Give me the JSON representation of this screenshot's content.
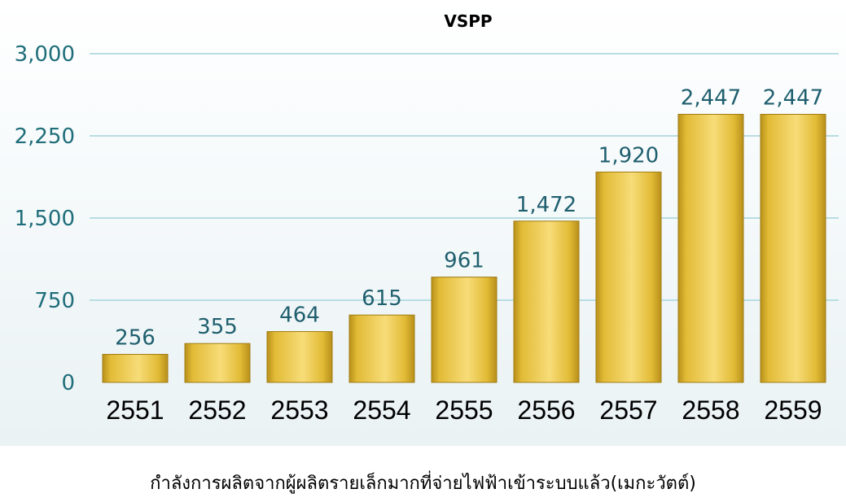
{
  "chart_data": {
    "type": "bar",
    "title": "VSPP",
    "xlabel": "กำลังการผลิตจากผู้ผลิตรายเล็กมากที่จ่ายไฟฟ้าเข้าระบบแล้ว(เมกะวัตต์)",
    "ylabel": "",
    "categories": [
      "2551",
      "2552",
      "2553",
      "2554",
      "2555",
      "2556",
      "2557",
      "2558",
      "2559"
    ],
    "values": [
      256,
      355,
      464,
      615,
      961,
      1472,
      1920,
      2447,
      2447
    ],
    "value_labels": [
      "256",
      "355",
      "464",
      "615",
      "961",
      "1,472",
      "1,920",
      "2,447",
      "2,447"
    ],
    "ylim": [
      0,
      3000
    ],
    "yticks": [
      0,
      750,
      1500,
      2250,
      3000
    ],
    "ytick_labels": [
      "0",
      "750",
      "1,500",
      "2,250",
      "3,000"
    ],
    "grid": true,
    "legend": "none",
    "colors": {
      "bar_light": "#f7dc78",
      "bar_mid": "#e2bb36",
      "bar_dark": "#b8901a",
      "bar_stroke": "#a07c14",
      "axis_text": "#1f6e7a",
      "value_text": "#1f5f6e",
      "gridline": "#b9dde3"
    }
  }
}
